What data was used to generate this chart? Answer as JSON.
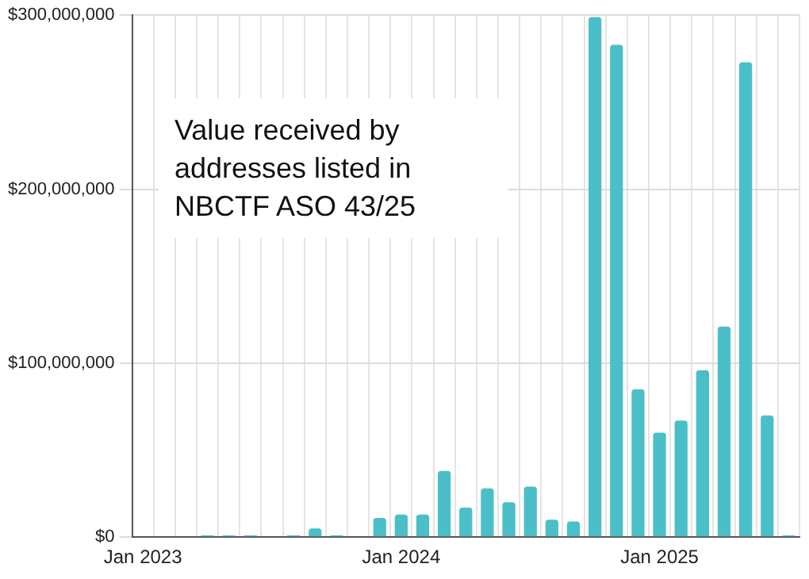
{
  "chart_data": {
    "type": "bar",
    "title": "Value received by addresses listed in NBCTF ASO 43/25",
    "categories": [
      "Jan 2023",
      null,
      null,
      null,
      null,
      null,
      null,
      null,
      null,
      null,
      null,
      null,
      "Jan 2024",
      null,
      null,
      null,
      null,
      null,
      null,
      null,
      null,
      null,
      null,
      null,
      "Jan 2025",
      null,
      null,
      null,
      null,
      null,
      null
    ],
    "values": [
      0,
      0,
      0,
      1000000,
      1000000,
      1000000,
      0,
      1000000,
      5000000,
      1000000,
      0,
      11000000,
      13000000,
      13000000,
      38000000,
      17000000,
      28000000,
      20000000,
      29000000,
      10000000,
      9000000,
      299000000,
      283000000,
      85000000,
      60000000,
      67000000,
      96000000,
      121000000,
      273000000,
      70000000,
      1000000
    ],
    "color": "#4bbfc8",
    "ylim": [
      0,
      300000000
    ],
    "yticks": [
      {
        "value": 0,
        "label": "$0"
      },
      {
        "value": 100000000,
        "label": "$100,000,000"
      },
      {
        "value": 200000000,
        "label": "$200,000,000"
      },
      {
        "value": 300000000,
        "label": "$300,000,000"
      }
    ],
    "grid": true,
    "legend": false
  }
}
